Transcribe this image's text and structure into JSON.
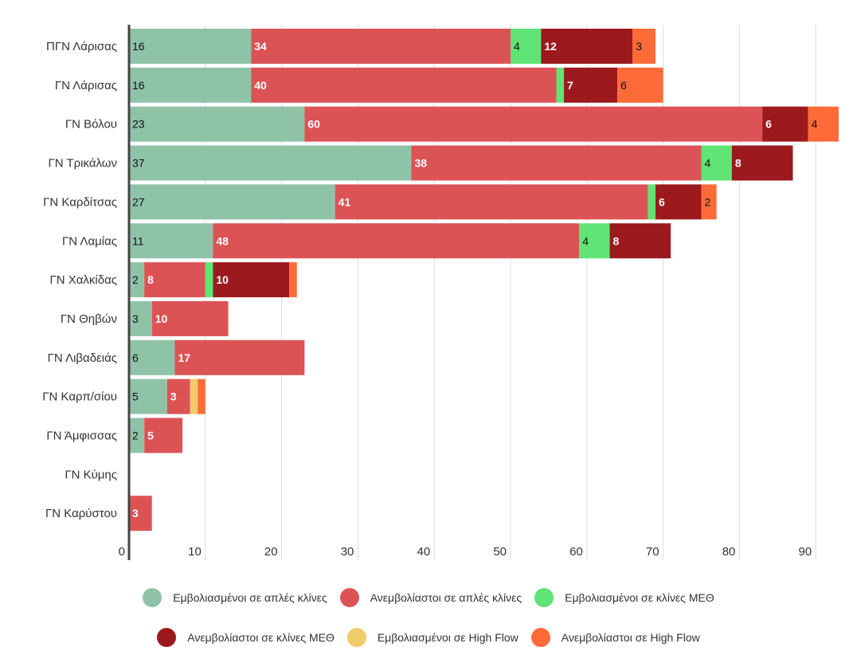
{
  "chart_data": {
    "type": "bar",
    "orientation": "horizontal",
    "stacked": true,
    "title": "",
    "xlabel": "",
    "ylabel": "",
    "xlim": [
      0,
      95
    ],
    "x_ticks": [
      0,
      10,
      20,
      30,
      40,
      50,
      60,
      70,
      80,
      90
    ],
    "grid": "vertical",
    "legend_position": "bottom-center",
    "categories": [
      "ΠΓΝ Λάρισας",
      "ΓΝ Λάρισας",
      "ΓΝ Βόλου",
      "ΓΝ Τρικάλων",
      "ΓΝ Καρδίτσας",
      "ΓΝ Λαμίας",
      "ΓΝ Χαλκίδας",
      "ΓΝ Θηβών",
      "ΓΝ Λιβαδειάς",
      "ΓΝ Καρπ/σίου",
      "ΓΝ Άμφισσας",
      "ΓΝ Κύμης",
      "ΓΝ Καρύστου"
    ],
    "series": [
      {
        "name": "Εμβολιασμένοι σε απλές κλίνες",
        "color": "#8fc3a8",
        "label_style": "dark",
        "values": [
          16,
          16,
          23,
          37,
          27,
          11,
          2,
          3,
          6,
          5,
          2,
          0,
          0
        ]
      },
      {
        "name": "Ανεμβολίαστοι σε απλές κλίνες",
        "color": "#dc5356",
        "label_style": "light",
        "values": [
          34,
          40,
          60,
          38,
          41,
          48,
          8,
          10,
          17,
          3,
          5,
          0,
          3
        ]
      },
      {
        "name": "Εμβολιασμένοι σε κλίνες ΜΕΘ",
        "color": "#5fe475",
        "label_style": "dark",
        "values": [
          4,
          1,
          0,
          4,
          1,
          4,
          1,
          0,
          0,
          0,
          0,
          0,
          0
        ]
      },
      {
        "name": "Ανεμβολίαστοι σε κλίνες ΜΕΘ",
        "color": "#9c191d",
        "label_style": "light",
        "values": [
          12,
          7,
          6,
          8,
          6,
          8,
          10,
          0,
          0,
          0,
          0,
          0,
          0
        ]
      },
      {
        "name": "Εμβολιασμένοι σε High Flow",
        "color": "#f0cb69",
        "label_style": "dark",
        "values": [
          0,
          0,
          0,
          0,
          0,
          0,
          0,
          0,
          0,
          1,
          0,
          0,
          0
        ]
      },
      {
        "name": "Ανεμβολίαστοι σε High Flow",
        "color": "#fe6b39",
        "label_style": "dark",
        "values": [
          3,
          6,
          4,
          0,
          2,
          0,
          1,
          0,
          0,
          1,
          0,
          0,
          0
        ]
      }
    ],
    "label_min_value": 2
  },
  "legend": {
    "rows": [
      [
        0,
        1,
        2
      ],
      [
        3,
        4,
        5
      ]
    ]
  }
}
